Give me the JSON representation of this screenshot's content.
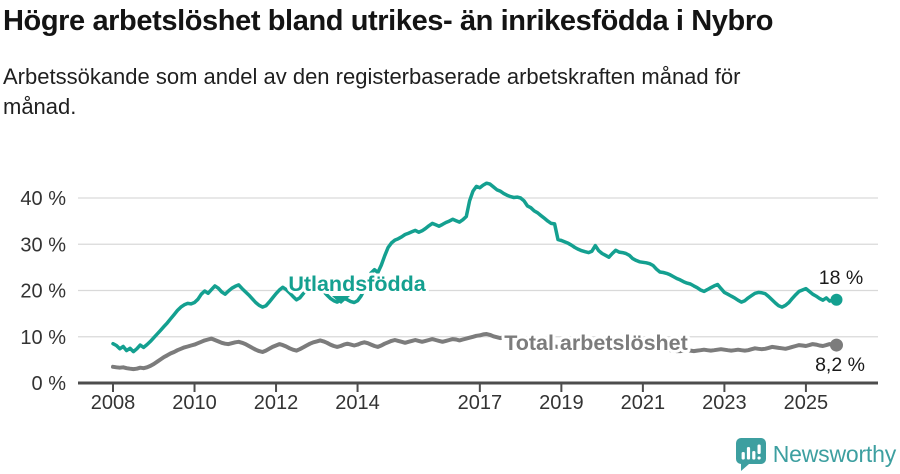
{
  "header": {
    "title": "Högre arbetslöshet bland utrikes- än inrikesfödda i Nybro",
    "subtitle": "Arbetssökande som andel av den registerbaserade arbetskraften månad för månad."
  },
  "branding": {
    "logo_text": "Newsworthy",
    "logo_color": "#3d9fa0"
  },
  "colors": {
    "foreign_born_line": "#14a090",
    "total_line": "#7c7c7c",
    "gridline": "#d9d9d9",
    "axis": "#4d4d4d",
    "tick_label": "#333333",
    "value_label": "#1a1a1a"
  },
  "chart_data": {
    "type": "line",
    "x_unit": "monthly, Jan 2008 – Oct 2025",
    "x_start_year": 2008,
    "points_per_year": 12,
    "xlim": [
      2007.15,
      2026.75
    ],
    "ylim": [
      0,
      43.5
    ],
    "grid": "horizontal only",
    "y_ticks": [
      {
        "value": 0,
        "label": "0 %"
      },
      {
        "value": 10,
        "label": "10 %"
      },
      {
        "value": 20,
        "label": "20 %"
      },
      {
        "value": 30,
        "label": "30 %"
      },
      {
        "value": 40,
        "label": "40 %"
      }
    ],
    "x_ticks": [
      {
        "value": 2008,
        "label": "2008"
      },
      {
        "value": 2010,
        "label": "2010"
      },
      {
        "value": 2012,
        "label": "2012"
      },
      {
        "value": 2014,
        "label": "2014"
      },
      {
        "value": 2017,
        "label": "2017"
      },
      {
        "value": 2019,
        "label": "2019"
      },
      {
        "value": 2021,
        "label": "2021"
      },
      {
        "value": 2023,
        "label": "2023"
      },
      {
        "value": 2025,
        "label": "2025"
      }
    ],
    "series": [
      {
        "name": "Utlandsfödda",
        "color": "#14a090",
        "end_label": "18 %",
        "end_dot_radius": 6,
        "values": [
          8.5,
          8.1,
          7.4,
          7.9,
          7.0,
          7.5,
          6.8,
          7.4,
          8.2,
          7.7,
          8.3,
          9.0,
          9.8,
          10.6,
          11.4,
          12.2,
          13.0,
          13.9,
          14.8,
          15.7,
          16.4,
          16.9,
          17.2,
          17.1,
          17.4,
          18.1,
          19.2,
          19.9,
          19.4,
          20.2,
          21.0,
          20.5,
          19.7,
          19.2,
          19.9,
          20.5,
          20.9,
          21.2,
          20.4,
          19.7,
          19.0,
          18.2,
          17.4,
          16.8,
          16.4,
          16.7,
          17.5,
          18.4,
          19.3,
          20.1,
          20.7,
          20.2,
          19.5,
          18.7,
          18.0,
          18.4,
          19.3,
          20.3,
          21.0,
          21.4,
          21.3,
          20.6,
          19.8,
          19.0,
          18.3,
          17.8,
          17.5,
          17.9,
          18.3,
          18.0,
          17.6,
          17.4,
          17.8,
          18.8,
          20.2,
          22.0,
          23.8,
          24.5,
          23.9,
          25.5,
          27.5,
          29.3,
          30.3,
          30.9,
          31.2,
          31.6,
          32.1,
          32.4,
          32.7,
          33.0,
          32.6,
          32.9,
          33.4,
          34.0,
          34.5,
          34.2,
          33.9,
          34.3,
          34.7,
          35.0,
          35.4,
          35.1,
          34.8,
          35.3,
          36.0,
          39.4,
          41.5,
          42.5,
          42.2,
          42.8,
          43.2,
          43.0,
          42.4,
          41.8,
          41.5,
          41.0,
          40.6,
          40.3,
          40.1,
          40.2,
          40.0,
          39.4,
          38.3,
          37.9,
          37.2,
          36.8,
          36.2,
          35.6,
          35.0,
          34.5,
          34.4,
          31.0,
          30.8,
          30.5,
          30.2,
          29.8,
          29.3,
          28.9,
          28.6,
          28.4,
          28.2,
          28.5,
          29.7,
          28.6,
          28.0,
          27.6,
          27.2,
          28.0,
          28.7,
          28.3,
          28.2,
          28.0,
          27.6,
          26.9,
          26.5,
          26.2,
          26.1,
          26.0,
          25.8,
          25.4,
          24.6,
          24.0,
          23.9,
          23.7,
          23.4,
          23.0,
          22.6,
          22.3,
          21.9,
          21.6,
          21.4,
          21.0,
          20.6,
          20.1,
          19.8,
          20.2,
          20.6,
          21.0,
          21.3,
          20.4,
          19.6,
          19.2,
          18.8,
          18.4,
          17.9,
          17.5,
          17.8,
          18.4,
          18.9,
          19.4,
          19.6,
          19.5,
          19.3,
          18.7,
          18.0,
          17.3,
          16.7,
          16.4,
          16.8,
          17.4,
          18.3,
          19.1,
          19.8,
          20.1,
          20.4,
          19.8,
          19.2,
          18.8,
          18.3,
          17.9,
          18.4,
          17.7,
          17.9,
          18.0
        ]
      },
      {
        "name": "Total arbetslöshet",
        "color": "#7c7c7c",
        "end_label": "8,2 %",
        "end_dot_radius": 6.5,
        "values": [
          3.5,
          3.4,
          3.3,
          3.4,
          3.2,
          3.1,
          3.0,
          3.1,
          3.3,
          3.2,
          3.4,
          3.7,
          4.1,
          4.6,
          5.1,
          5.6,
          6.0,
          6.4,
          6.7,
          7.1,
          7.4,
          7.7,
          7.9,
          8.1,
          8.3,
          8.6,
          8.9,
          9.2,
          9.4,
          9.6,
          9.3,
          9.0,
          8.7,
          8.5,
          8.4,
          8.6,
          8.8,
          8.9,
          8.7,
          8.4,
          8.0,
          7.6,
          7.2,
          6.9,
          6.7,
          7.0,
          7.4,
          7.8,
          8.1,
          8.4,
          8.2,
          7.9,
          7.5,
          7.2,
          7.0,
          7.3,
          7.7,
          8.1,
          8.5,
          8.8,
          9.0,
          9.2,
          9.0,
          8.7,
          8.3,
          8.0,
          7.8,
          8.0,
          8.3,
          8.5,
          8.3,
          8.1,
          8.3,
          8.6,
          8.8,
          8.6,
          8.3,
          8.0,
          7.8,
          8.1,
          8.5,
          8.8,
          9.1,
          9.3,
          9.1,
          8.9,
          8.7,
          8.9,
          9.1,
          9.3,
          9.1,
          8.9,
          9.1,
          9.3,
          9.5,
          9.3,
          9.1,
          8.9,
          9.1,
          9.3,
          9.5,
          9.4,
          9.2,
          9.4,
          9.6,
          9.8,
          10.0,
          10.2,
          10.3,
          10.5,
          10.6,
          10.4,
          10.1,
          9.9,
          9.7,
          9.9,
          10.1,
          9.9,
          9.7,
          9.5,
          9.3,
          9.1,
          8.9,
          8.7,
          8.5,
          8.4,
          8.3,
          8.2,
          8.1,
          8.0,
          7.9,
          7.8,
          7.8,
          7.7,
          7.6,
          7.6,
          7.5,
          7.6,
          7.7,
          7.6,
          7.5,
          7.6,
          7.7,
          7.8,
          8.0,
          8.3,
          8.6,
          8.9,
          9.1,
          9.2,
          9.0,
          8.8,
          8.6,
          8.4,
          8.2,
          8.0,
          7.9,
          7.8,
          7.7,
          7.6,
          7.5,
          7.4,
          7.3,
          7.2,
          7.1,
          7.0,
          6.9,
          6.9,
          7.0,
          7.1,
          7.0,
          6.9,
          7.0,
          7.1,
          7.2,
          7.1,
          7.0,
          7.1,
          7.2,
          7.3,
          7.2,
          7.1,
          7.0,
          7.1,
          7.2,
          7.1,
          7.0,
          7.1,
          7.3,
          7.5,
          7.4,
          7.3,
          7.4,
          7.6,
          7.8,
          7.7,
          7.6,
          7.5,
          7.4,
          7.6,
          7.8,
          8.0,
          8.2,
          8.1,
          8.0,
          8.2,
          8.4,
          8.3,
          8.1,
          8.0,
          8.2,
          8.4,
          8.3,
          8.2
        ]
      }
    ],
    "annotations": {
      "series_label_pointer": "small teal chevron under 'Utlandsfödda' pointing to line"
    }
  }
}
